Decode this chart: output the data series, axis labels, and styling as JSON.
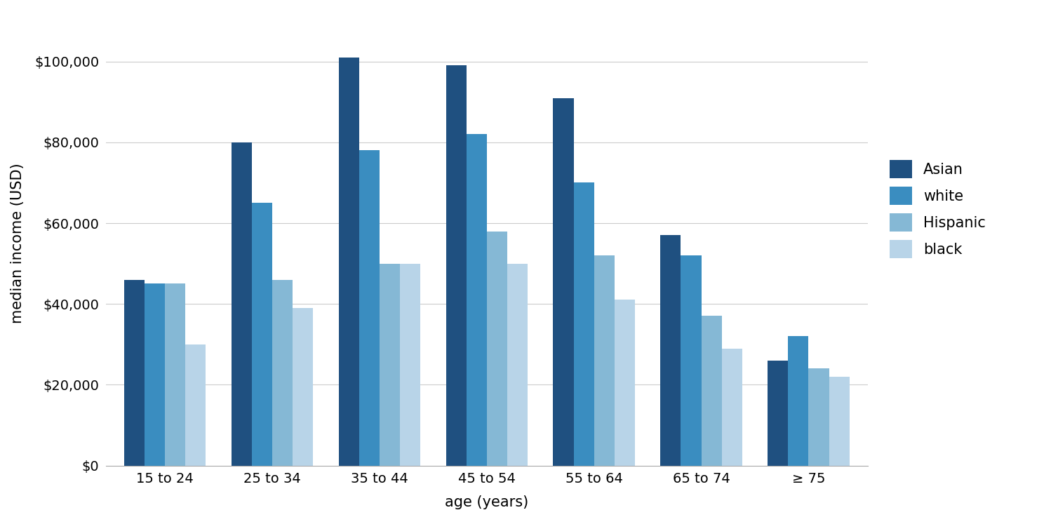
{
  "age_groups": [
    "15 to 24",
    "25 to 34",
    "35 to 44",
    "45 to 54",
    "55 to 64",
    "65 to 74",
    "≥ 75"
  ],
  "series": {
    "Asian": [
      46000,
      80000,
      101000,
      99000,
      91000,
      57000,
      26000
    ],
    "white": [
      45000,
      65000,
      78000,
      82000,
      70000,
      52000,
      32000
    ],
    "Hispanic": [
      45000,
      46000,
      50000,
      58000,
      52000,
      37000,
      24000
    ],
    "black": [
      30000,
      39000,
      50000,
      50000,
      41000,
      29000,
      22000
    ]
  },
  "colors": {
    "Asian": "#1F5080",
    "white": "#3A8DC0",
    "Hispanic": "#85B8D5",
    "black": "#B8D4E8"
  },
  "ylabel": "median income (USD)",
  "xlabel": "age (years)",
  "ylim": [
    0,
    110000
  ],
  "yticks": [
    0,
    20000,
    40000,
    60000,
    80000,
    100000
  ],
  "background_color": "#ffffff",
  "grid_color": "#cccccc",
  "bar_width": 0.19,
  "legend_labels": [
    "Asian",
    "white",
    "Hispanic",
    "black"
  ]
}
